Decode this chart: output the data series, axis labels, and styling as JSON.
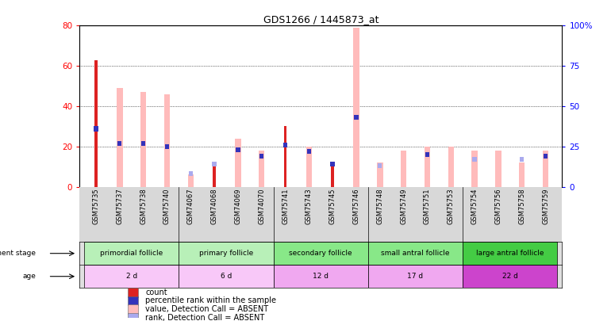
{
  "title": "GDS1266 / 1445873_at",
  "samples": [
    "GSM75735",
    "GSM75737",
    "GSM75738",
    "GSM75740",
    "GSM74067",
    "GSM74068",
    "GSM74069",
    "GSM74070",
    "GSM75741",
    "GSM75743",
    "GSM75745",
    "GSM75746",
    "GSM75748",
    "GSM75749",
    "GSM75751",
    "GSM75753",
    "GSM75754",
    "GSM75756",
    "GSM75758",
    "GSM75759"
  ],
  "count_red": [
    63,
    0,
    0,
    0,
    0,
    11,
    0,
    0,
    30,
    0,
    11,
    0,
    0,
    0,
    0,
    0,
    0,
    0,
    0,
    0
  ],
  "count_pink": [
    0,
    49,
    47,
    46,
    6,
    0,
    24,
    18,
    0,
    20,
    0,
    79,
    12,
    18,
    20,
    20,
    18,
    18,
    12,
    18
  ],
  "percentile_darkblue": [
    36,
    27,
    27,
    25,
    0,
    0,
    23,
    19,
    26,
    22,
    14,
    43,
    0,
    0,
    20,
    0,
    0,
    0,
    0,
    19
  ],
  "rank_lightblue": [
    0,
    0,
    0,
    0,
    8,
    14,
    0,
    0,
    0,
    0,
    0,
    0,
    13,
    0,
    0,
    0,
    17,
    0,
    17,
    0
  ],
  "groups": [
    {
      "label": "primordial follicle",
      "start": 0,
      "end": 4
    },
    {
      "label": "primary follicle",
      "start": 4,
      "end": 8
    },
    {
      "label": "secondary follicle",
      "start": 8,
      "end": 12
    },
    {
      "label": "small antral follicle",
      "start": 12,
      "end": 16
    },
    {
      "label": "large antral follicle",
      "start": 16,
      "end": 20
    }
  ],
  "age_labels": [
    "2 d",
    "6 d",
    "12 d",
    "17 d",
    "22 d"
  ],
  "dev_bg_colors": [
    "#b8f0b8",
    "#b8f0b8",
    "#88e888",
    "#88e888",
    "#44cc44"
  ],
  "age_bg_colors": [
    "#f8c8f8",
    "#f8c8f8",
    "#f0a8f0",
    "#f0a8f0",
    "#cc44cc"
  ],
  "ylim_left": [
    0,
    80
  ],
  "ylim_right": [
    0,
    100
  ],
  "yticks_left": [
    0,
    20,
    40,
    60,
    80
  ],
  "yticks_right": [
    0,
    25,
    50,
    75,
    100
  ],
  "col_red": "#dd2222",
  "col_pink": "#ffbbbb",
  "col_darkblue": "#3333bb",
  "col_lightblue": "#aaaaee",
  "legend_items": [
    {
      "label": "count",
      "color": "#dd2222"
    },
    {
      "label": "percentile rank within the sample",
      "color": "#3333bb"
    },
    {
      "label": "value, Detection Call = ABSENT",
      "color": "#ffbbbb"
    },
    {
      "label": "rank, Detection Call = ABSENT",
      "color": "#aaaaee"
    }
  ]
}
